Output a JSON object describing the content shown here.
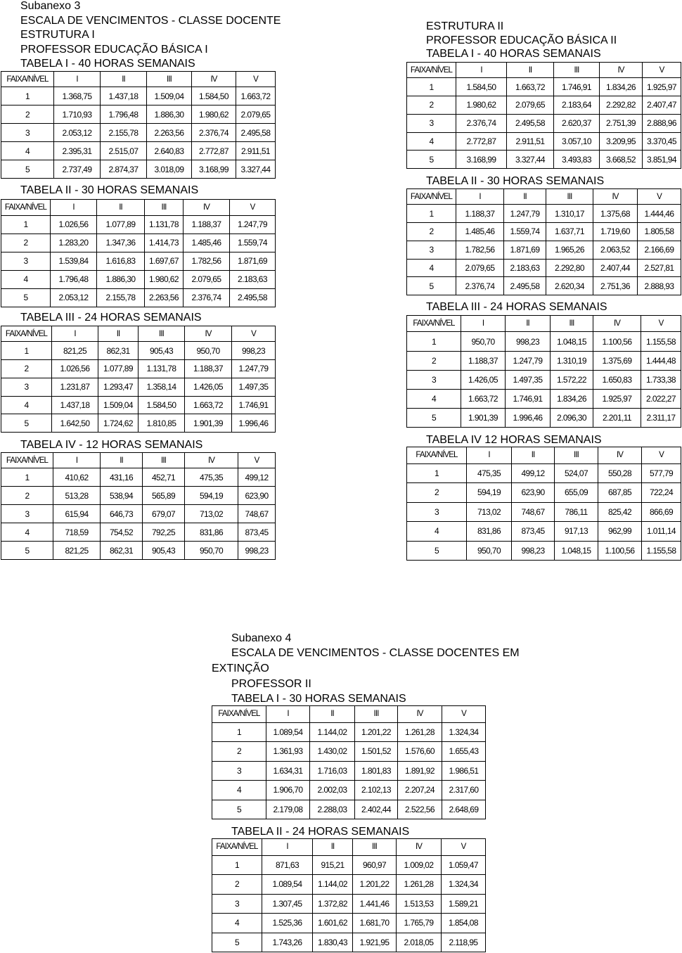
{
  "subanexo3": {
    "title": "Subanexo 3",
    "subtitle": "ESCALA DE VENCIMENTOS - CLASSE DOCENTE",
    "estrutura1": {
      "heading": "ESTRUTURA I",
      "cargo": "PROFESSOR EDUCAÇÃO BÁSICA I",
      "tables": [
        {
          "title": "TABELA I - 40 HORAS SEMANAIS",
          "headers": [
            "FAIXA/NÍVEL",
            "I",
            "II",
            "III",
            "IV",
            "V"
          ],
          "rows": [
            [
              "1",
              "1.368,75",
              "1.437,18",
              "1.509,04",
              "1.584,50",
              "1.663,72"
            ],
            [
              "2",
              "1.710,93",
              "1.796,48",
              "1.886,30",
              "1.980,62",
              "2.079,65"
            ],
            [
              "3",
              "2.053,12",
              "2.155,78",
              "2.263,56",
              "2.376,74",
              "2.495,58"
            ],
            [
              "4",
              "2.395,31",
              "2.515,07",
              "2.640,83",
              "2.772,87",
              "2.911,51"
            ],
            [
              "5",
              "2.737,49",
              "2.874,37",
              "3.018,09",
              "3.168,99",
              "3.327,44"
            ]
          ]
        },
        {
          "title": "TABELA II - 30 HORAS SEMANAIS",
          "headers": [
            "FAIXA/NÍVEL",
            "I",
            "II",
            "III",
            "IV",
            "V"
          ],
          "rows": [
            [
              "1",
              "1.026,56",
              "1.077,89",
              "1.131,78",
              "1.188,37",
              "1.247,79"
            ],
            [
              "2",
              "1.283,20",
              "1.347,36",
              "1.414,73",
              "1.485,46",
              "1.559,74"
            ],
            [
              "3",
              "1.539,84",
              "1.616,83",
              "1.697,67",
              "1.782,56",
              "1.871,69"
            ],
            [
              "4",
              "1.796,48",
              "1.886,30",
              "1.980,62",
              "2.079,65",
              "2.183,63"
            ],
            [
              "5",
              "2.053,12",
              "2.155,78",
              "2.263,56",
              "2.376,74",
              "2.495,58"
            ]
          ]
        },
        {
          "title": "TABELA III - 24 HORAS SEMANAIS",
          "headers": [
            "FAIXA/NÍVEL",
            "I",
            "II",
            "III",
            "IV",
            "V"
          ],
          "rows": [
            [
              "1",
              "821,25",
              "862,31",
              "905,43",
              "950,70",
              "998,23"
            ],
            [
              "2",
              "1.026,56",
              "1.077,89",
              "1.131,78",
              "1.188,37",
              "1.247,79"
            ],
            [
              "3",
              "1.231,87",
              "1.293,47",
              "1.358,14",
              "1.426,05",
              "1.497,35"
            ],
            [
              "4",
              "1.437,18",
              "1.509,04",
              "1.584,50",
              "1.663,72",
              "1.746,91"
            ],
            [
              "5",
              "1.642,50",
              "1.724,62",
              "1.810,85",
              "1.901,39",
              "1.996,46"
            ]
          ]
        },
        {
          "title": "TABELA IV - 12 HORAS SEMANAIS",
          "headers": [
            "FAIXA/NÍVEL",
            "I",
            "II",
            "III",
            "IV",
            "V"
          ],
          "rows": [
            [
              "1",
              "410,62",
              "431,16",
              "452,71",
              "475,35",
              "499,12"
            ],
            [
              "2",
              "513,28",
              "538,94",
              "565,89",
              "594,19",
              "623,90"
            ],
            [
              "3",
              "615,94",
              "646,73",
              "679,07",
              "713,02",
              "748,67"
            ],
            [
              "4",
              "718,59",
              "754,52",
              "792,25",
              "831,86",
              "873,45"
            ],
            [
              "5",
              "821,25",
              "862,31",
              "905,43",
              "950,70",
              "998,23"
            ]
          ]
        }
      ]
    },
    "estrutura2": {
      "heading": "ESTRUTURA II",
      "cargo": "PROFESSOR EDUCAÇÃO BÁSICA II",
      "tables": [
        {
          "title": "TABELA I - 40 HORAS SEMANAIS",
          "headers": [
            "FAIXA/NÍVEL",
            "I",
            "II",
            "III",
            "IV",
            "V"
          ],
          "rows": [
            [
              "1",
              "1.584,50",
              "1.663,72",
              "1.746,91",
              "1.834,26",
              "1.925,97"
            ],
            [
              "2",
              "1.980,62",
              "2.079,65",
              "2.183,64",
              "2.292,82",
              "2.407,47"
            ],
            [
              "3",
              "2.376,74",
              "2.495,58",
              "2.620,37",
              "2.751,39",
              "2.888,96"
            ],
            [
              "4",
              "2.772,87",
              "2.911,51",
              "3.057,10",
              "3.209,95",
              "3.370,45"
            ],
            [
              "5",
              "3.168,99",
              "3.327,44",
              "3.493,83",
              "3.668,52",
              "3.851,94"
            ]
          ]
        },
        {
          "title": "TABELA II - 30 HORAS SEMANAIS",
          "headers": [
            "FAIXA/NÍVEL",
            "I",
            "II",
            "III",
            "IV",
            "V"
          ],
          "rows": [
            [
              "1",
              "1.188,37",
              "1.247,79",
              "1.310,17",
              "1.375,68",
              "1.444,46"
            ],
            [
              "2",
              "1.485,46",
              "1.559,74",
              "1.637,71",
              "1.719,60",
              "1.805,58"
            ],
            [
              "3",
              "1.782,56",
              "1.871,69",
              "1.965,26",
              "2.063,52",
              "2.166,69"
            ],
            [
              "4",
              "2.079,65",
              "2.183,63",
              "2.292,80",
              "2.407,44",
              "2.527,81"
            ],
            [
              "5",
              "2.376,74",
              "2.495,58",
              "2.620,34",
              "2.751,36",
              "2.888,93"
            ]
          ]
        },
        {
          "title": "TABELA III - 24 HORAS SEMANAIS",
          "headers": [
            "FAIXA/NÍVEL",
            "I",
            "II",
            "III",
            "IV",
            "V"
          ],
          "rows": [
            [
              "1",
              "950,70",
              "998,23",
              "1.048,15",
              "1.100,56",
              "1.155,58"
            ],
            [
              "2",
              "1.188,37",
              "1.247,79",
              "1.310,19",
              "1.375,69",
              "1.444,48"
            ],
            [
              "3",
              "1.426,05",
              "1.497,35",
              "1.572,22",
              "1.650,83",
              "1.733,38"
            ],
            [
              "4",
              "1.663,72",
              "1.746,91",
              "1.834,26",
              "1.925,97",
              "2.022,27"
            ],
            [
              "5",
              "1.901,39",
              "1.996,46",
              "2.096,30",
              "2.201,11",
              "2.311,17"
            ]
          ]
        },
        {
          "title": "TABELA IV 12 HORAS SEMANAIS",
          "headers": [
            "FAIXA/NÍVEL",
            "I",
            "II",
            "III",
            "IV",
            "V"
          ],
          "rows": [
            [
              "1",
              "475,35",
              "499,12",
              "524,07",
              "550,28",
              "577,79"
            ],
            [
              "2",
              "594,19",
              "623,90",
              "655,09",
              "687,85",
              "722,24"
            ],
            [
              "3",
              "713,02",
              "748,67",
              "786,11",
              "825,42",
              "866,69"
            ],
            [
              "4",
              "831,86",
              "873,45",
              "917,13",
              "962,99",
              "1.011,14"
            ],
            [
              "5",
              "950,70",
              "998,23",
              "1.048,15",
              "1.100,56",
              "1.155,58"
            ]
          ]
        }
      ]
    }
  },
  "subanexo4": {
    "title": "Subanexo 4",
    "subtitle_line1": "ESCALA DE VENCIMENTOS - CLASSE DOCENTES EM",
    "subtitle_line2": "EXTINÇÃO",
    "cargo": "PROFESSOR II",
    "tables": [
      {
        "title": "TABELA I - 30 HORAS SEMANAIS",
        "headers": [
          "FAIXA/NÍVEL",
          "I",
          "II",
          "III",
          "IV",
          "V"
        ],
        "rows": [
          [
            "1",
            "1.089,54",
            "1.144,02",
            "1.201,22",
            "1.261,28",
            "1.324,34"
          ],
          [
            "2",
            "1.361,93",
            "1.430,02",
            "1.501,52",
            "1.576,60",
            "1.655,43"
          ],
          [
            "3",
            "1.634,31",
            "1.716,03",
            "1.801,83",
            "1.891,92",
            "1.986,51"
          ],
          [
            "4",
            "1.906,70",
            "2.002,03",
            "2.102,13",
            "2.207,24",
            "2.317,60"
          ],
          [
            "5",
            "2.179,08",
            "2.288,03",
            "2.402,44",
            "2.522,56",
            "2.648,69"
          ]
        ]
      },
      {
        "title": "TABELA II - 24 HORAS SEMANAIS",
        "headers": [
          "FAIXA/NÍVEL",
          "I",
          "II",
          "III",
          "IV",
          "V"
        ],
        "rows": [
          [
            "1",
            "871,63",
            "915,21",
            "960,97",
            "1.009,02",
            "1.059,47"
          ],
          [
            "2",
            "1.089,54",
            "1.144,02",
            "1.201,22",
            "1.261,28",
            "1.324,34"
          ],
          [
            "3",
            "1.307,45",
            "1.372,82",
            "1.441,46",
            "1.513,53",
            "1.589,21"
          ],
          [
            "4",
            "1.525,36",
            "1.601,62",
            "1.681,70",
            "1.765,79",
            "1.854,08"
          ],
          [
            "5",
            "1.743,26",
            "1.830,43",
            "1.921,95",
            "2.018,05",
            "2.118,95"
          ]
        ]
      }
    ]
  }
}
